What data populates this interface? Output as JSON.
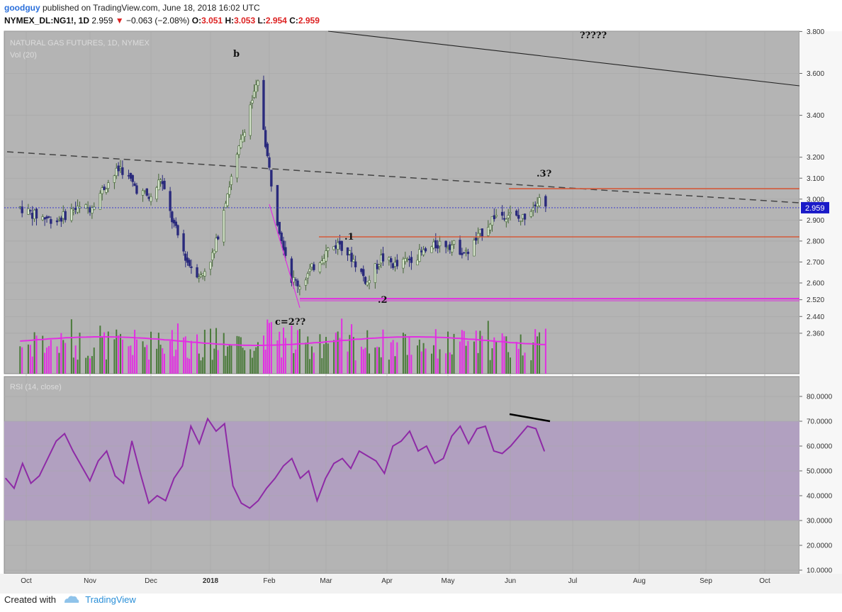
{
  "header": {
    "user": "goodguy",
    "published": "published on TradingView.com, June 18, 2018 16:02 UTC",
    "symbol": "NYMEX_DL:NG1!, 1D",
    "last": "2.959",
    "change": "−0.063 (−2.08%)",
    "o_label": "O:",
    "o": "3.051",
    "h_label": "H:",
    "h": "3.053",
    "l_label": "L:",
    "l": "2.954",
    "c_label": "C:",
    "c": "2.959"
  },
  "footer": {
    "created_with": "Created with",
    "brand": "TradingView"
  },
  "chart_data": [
    {
      "type": "candlestick",
      "title": "NATURAL GAS FUTURES, 1D, NYMEX",
      "volume_label": "Vol (20)",
      "y_ticks": [
        "3.800",
        "3.600",
        "3.400",
        "3.200",
        "3.100",
        "3.000",
        "2.900",
        "2.800",
        "2.700",
        "2.600",
        "2.520",
        "2.440",
        "2.360"
      ],
      "x_ticks": [
        "Oct",
        "Nov",
        "Dec",
        "2018",
        "Feb",
        "Mar",
        "Apr",
        "May",
        "Jun",
        "Jul",
        "Aug",
        "Sep",
        "Oct"
      ],
      "last_price": "2.959",
      "close_path": [
        [
          "2017-09-28",
          2.96
        ],
        [
          "2017-10-06",
          2.92
        ],
        [
          "2017-10-16",
          2.9
        ],
        [
          "2017-10-24",
          2.95
        ],
        [
          "2017-11-01",
          2.96
        ],
        [
          "2017-11-09",
          3.07
        ],
        [
          "2017-11-16",
          3.15
        ],
        [
          "2017-11-24",
          3.05
        ],
        [
          "2017-12-01",
          3.0
        ],
        [
          "2017-12-06",
          3.1
        ],
        [
          "2017-12-12",
          2.9
        ],
        [
          "2017-12-20",
          2.7
        ],
        [
          "2017-12-27",
          2.63
        ],
        [
          "2018-01-03",
          2.75
        ],
        [
          "2018-01-09",
          3.0
        ],
        [
          "2018-01-15",
          3.2
        ],
        [
          "2018-01-22",
          3.45
        ],
        [
          "2018-01-26",
          3.55
        ],
        [
          "2018-01-31",
          3.2
        ],
        [
          "2018-02-05",
          2.9
        ],
        [
          "2018-02-12",
          2.62
        ],
        [
          "2018-02-16",
          2.59
        ],
        [
          "2018-02-23",
          2.68
        ],
        [
          "2018-03-02",
          2.76
        ],
        [
          "2018-03-08",
          2.79
        ],
        [
          "2018-03-15",
          2.71
        ],
        [
          "2018-03-22",
          2.6
        ],
        [
          "2018-03-29",
          2.72
        ],
        [
          "2018-04-06",
          2.68
        ],
        [
          "2018-04-13",
          2.72
        ],
        [
          "2018-04-20",
          2.75
        ],
        [
          "2018-04-27",
          2.79
        ],
        [
          "2018-05-04",
          2.78
        ],
        [
          "2018-05-10",
          2.74
        ],
        [
          "2018-05-17",
          2.83
        ],
        [
          "2018-05-24",
          2.92
        ],
        [
          "2018-05-31",
          2.93
        ],
        [
          "2018-06-06",
          2.9
        ],
        [
          "2018-06-12",
          2.97
        ],
        [
          "2018-06-15",
          3.02
        ],
        [
          "2018-06-18",
          2.959
        ]
      ],
      "horizontal_levels": [
        {
          "price": 3.05,
          "color": "#d35a3a"
        },
        {
          "price": 2.82,
          "color": "#d35a3a"
        },
        {
          "price": 2.525,
          "color": "#e22fe2"
        }
      ],
      "annotations": [
        "b",
        "?????",
        ".3?",
        ".1",
        ".2",
        "c=2??"
      ]
    },
    {
      "type": "line",
      "title": "RSI (14, close)",
      "y_ticks": [
        "80.0000",
        "70.0000",
        "60.0000",
        "50.0000",
        "40.0000",
        "30.0000",
        "20.0000",
        "10.0000"
      ],
      "band": [
        30,
        70
      ],
      "series": [
        {
          "values": [
            47,
            43,
            53,
            45,
            48,
            55,
            62,
            65,
            58,
            52,
            46,
            54,
            58,
            48,
            45,
            62,
            49,
            37,
            40,
            38,
            47,
            52,
            68,
            61,
            71,
            66,
            69,
            44,
            37,
            35,
            38,
            43,
            47,
            52,
            55,
            47,
            50,
            38,
            47,
            53,
            55,
            51,
            58,
            56,
            54,
            49,
            60,
            62,
            66,
            58,
            60,
            53,
            55,
            64,
            68,
            61,
            67,
            68,
            58,
            57,
            60,
            64,
            68,
            67,
            58
          ]
        }
      ]
    }
  ],
  "colors": {
    "panel": "#b4b4b4",
    "rsi_band": "#b1a0c0",
    "up": "#466837",
    "down": "#2a2a7c",
    "vol_ma": "#e22fe2",
    "rsi_line": "#8e2aa6",
    "price_label_bg": "#1a1ac8"
  }
}
